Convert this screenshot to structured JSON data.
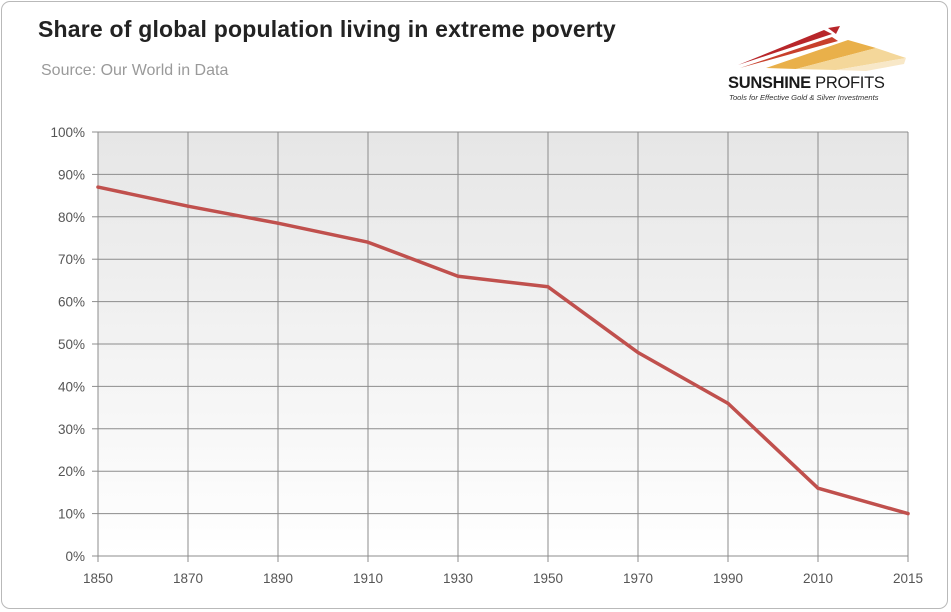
{
  "brand": {
    "name_part1": "SUNSHINE",
    "name_part2": "PROFITS",
    "tagline": "Tools for Effective Gold & Silver Investments",
    "colors": {
      "red": "#b8262a",
      "gold": "#e0a63a",
      "text": "#1a1a1a"
    }
  },
  "chart_data": {
    "type": "line",
    "title": "Share of global population living in extreme poverty",
    "subtitle": "Source: Our World in Data",
    "xlabel": "",
    "ylabel": "",
    "x_ticks": [
      "1850",
      "1870",
      "1890",
      "1910",
      "1930",
      "1950",
      "1970",
      "1990",
      "2010",
      "2015"
    ],
    "y_ticks": [
      "0%",
      "10%",
      "20%",
      "30%",
      "40%",
      "50%",
      "60%",
      "70%",
      "80%",
      "90%",
      "100%"
    ],
    "ylim": [
      0,
      100
    ],
    "grid": true,
    "legend": "none",
    "series": [
      {
        "name": "Share of global population living in extreme poverty",
        "color": "#c0504d",
        "points": [
          {
            "x": "1850",
            "y": 87
          },
          {
            "x": "1870",
            "y": 82.5
          },
          {
            "x": "1890",
            "y": 78.5
          },
          {
            "x": "1910",
            "y": 74
          },
          {
            "x": "1930",
            "y": 66
          },
          {
            "x": "1950",
            "y": 63.5
          },
          {
            "x": "1970",
            "y": 48
          },
          {
            "x": "1990",
            "y": 36
          },
          {
            "x": "2010",
            "y": 16
          },
          {
            "x": "2015",
            "y": 10
          }
        ]
      }
    ]
  }
}
